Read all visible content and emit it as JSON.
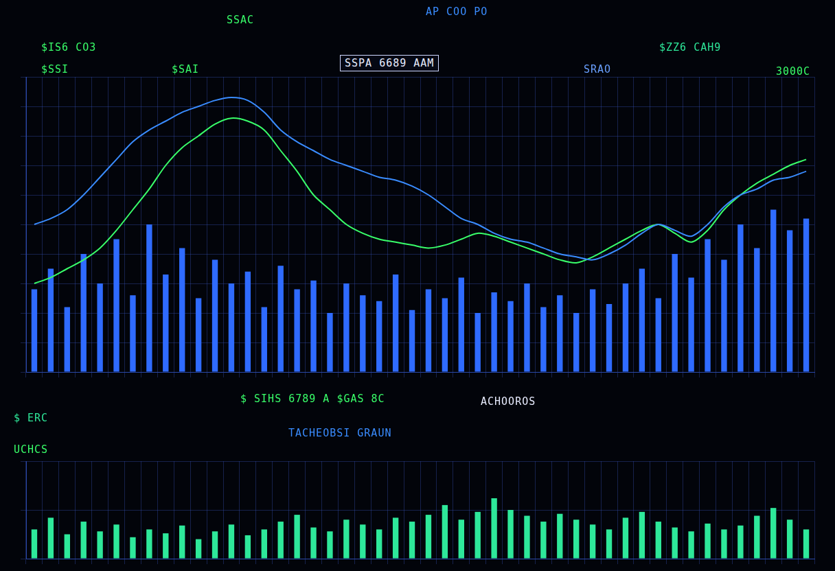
{
  "chart_data": [
    {
      "type": "bar",
      "categories": [
        null,
        null,
        null,
        null,
        null,
        null,
        null,
        null,
        null,
        null,
        null,
        null,
        null,
        null,
        null,
        null,
        null,
        null,
        null,
        null,
        null,
        null,
        null,
        null,
        null,
        null,
        null,
        null,
        null,
        null,
        null,
        null,
        null,
        null,
        null,
        null,
        null,
        null,
        null,
        null,
        null,
        null,
        null,
        null,
        null,
        null,
        null,
        null
      ],
      "series": [
        {
          "type": "bar",
          "color": "#2f6bff",
          "values": [
            28,
            35,
            22,
            40,
            30,
            45,
            26,
            50,
            33,
            42,
            25,
            38,
            30,
            34,
            22,
            36,
            28,
            31,
            20,
            30,
            26,
            24,
            33,
            21,
            28,
            25,
            32,
            20,
            27,
            24,
            30,
            22,
            26,
            20,
            28,
            23,
            30,
            35,
            25,
            40,
            32,
            45,
            38,
            50,
            42,
            55,
            48,
            52
          ]
        },
        {
          "type": "line",
          "color": "#3a8cff",
          "values": [
            50,
            52,
            55,
            60,
            66,
            72,
            78,
            82,
            85,
            88,
            90,
            92,
            93,
            92,
            88,
            82,
            78,
            75,
            72,
            70,
            68,
            66,
            65,
            63,
            60,
            56,
            52,
            50,
            47,
            45,
            44,
            42,
            40,
            39,
            38,
            40,
            43,
            47,
            50,
            48,
            46,
            50,
            56,
            60,
            62,
            65,
            66,
            68
          ]
        },
        {
          "type": "line",
          "color": "#39ff6a",
          "values": [
            30,
            32,
            35,
            38,
            42,
            48,
            55,
            62,
            70,
            76,
            80,
            84,
            86,
            85,
            82,
            75,
            68,
            60,
            55,
            50,
            47,
            45,
            44,
            43,
            42,
            43,
            45,
            47,
            46,
            44,
            42,
            40,
            38,
            37,
            39,
            42,
            45,
            48,
            50,
            47,
            44,
            48,
            55,
            60,
            64,
            67,
            70,
            72
          ]
        }
      ],
      "ylim": [
        0,
        100
      ],
      "yticks": [
        0,
        10,
        20,
        30,
        40,
        50,
        60,
        70,
        80,
        90,
        100
      ],
      "grid": true,
      "tick_labels": false,
      "annotations": [
        "$IS6 CO3",
        "AP COO PO",
        "SSPA 6689 AAM",
        "$ZZ6 CAH9",
        "3000C",
        "SRAO",
        "SSAC",
        "$SSI",
        "$SAI"
      ]
    },
    {
      "type": "bar",
      "categories": [
        null,
        null,
        null,
        null,
        null,
        null,
        null,
        null,
        null,
        null,
        null,
        null,
        null,
        null,
        null,
        null,
        null,
        null,
        null,
        null,
        null,
        null,
        null,
        null,
        null,
        null,
        null,
        null,
        null,
        null,
        null,
        null,
        null,
        null,
        null,
        null,
        null,
        null,
        null,
        null,
        null,
        null,
        null,
        null,
        null,
        null,
        null,
        null
      ],
      "values": [
        30,
        42,
        25,
        38,
        28,
        35,
        22,
        30,
        26,
        34,
        20,
        28,
        35,
        24,
        30,
        38,
        45,
        32,
        28,
        40,
        35,
        30,
        42,
        38,
        45,
        55,
        40,
        48,
        62,
        50,
        44,
        38,
        46,
        40,
        35,
        30,
        42,
        48,
        38,
        32,
        28,
        36,
        30,
        34,
        44,
        52,
        40,
        30
      ],
      "color": "#2ee89a",
      "ylim": [
        0,
        100
      ],
      "yticks": [
        0,
        50,
        100
      ],
      "grid": true,
      "tick_labels": false,
      "annotations": [
        "$ SIHS 6789 A $GAS 8C",
        "TACHEOBSI GRAUN",
        "ACHOOROS",
        "$ ERC",
        "UCHCS"
      ]
    }
  ]
}
